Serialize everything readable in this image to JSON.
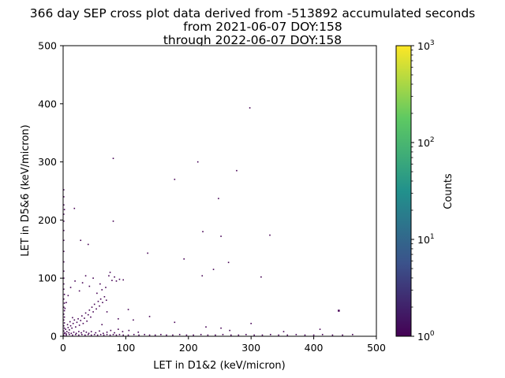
{
  "chart_data": {
    "type": "heatmap",
    "title_lines": [
      "366 day SEP cross plot data derived from -513892 accumulated seconds",
      "from 2021-06-07 DOY:158",
      "through 2022-06-07 DOY:158"
    ],
    "xlabel": "LET in D1&2 (keV/micron)",
    "ylabel": "LET in D5&6 (keV/micron)",
    "xlim": [
      0,
      500
    ],
    "ylim": [
      0,
      500
    ],
    "xticks": [
      0,
      100,
      200,
      300,
      400,
      500
    ],
    "yticks": [
      0,
      100,
      200,
      300,
      400,
      500
    ],
    "colorbar": {
      "label": "Counts",
      "scale": "log",
      "range": [
        1,
        1000
      ],
      "ticks": [
        {
          "value": 1,
          "base": "10",
          "exponent": "0"
        },
        {
          "value": 10,
          "base": "10",
          "exponent": "1"
        },
        {
          "value": 100,
          "base": "10",
          "exponent": "2"
        },
        {
          "value": 1000,
          "base": "10",
          "exponent": "3"
        }
      ],
      "colormap": "viridis",
      "colors": [
        "#440154",
        "#3b528b",
        "#21918c",
        "#5ec962",
        "#fde725"
      ]
    },
    "background_color": "#ffffff",
    "points": [
      {
        "x": 1,
        "y": 2,
        "count": 1
      },
      {
        "x": 2,
        "y": 5,
        "count": 1
      },
      {
        "x": 1,
        "y": 9,
        "count": 1
      },
      {
        "x": 2,
        "y": 14,
        "count": 1
      },
      {
        "x": 1,
        "y": 18,
        "count": 1
      },
      {
        "x": 2,
        "y": 23,
        "count": 1
      },
      {
        "x": 1,
        "y": 28,
        "count": 1
      },
      {
        "x": 2,
        "y": 33,
        "count": 1
      },
      {
        "x": 1,
        "y": 38,
        "count": 1
      },
      {
        "x": 2,
        "y": 44,
        "count": 1
      },
      {
        "x": 1,
        "y": 50,
        "count": 1
      },
      {
        "x": 2,
        "y": 57,
        "count": 1
      },
      {
        "x": 1,
        "y": 64,
        "count": 1
      },
      {
        "x": 2,
        "y": 72,
        "count": 1
      },
      {
        "x": 1,
        "y": 81,
        "count": 1
      },
      {
        "x": 1,
        "y": 90,
        "count": 1
      },
      {
        "x": 1,
        "y": 100,
        "count": 1
      },
      {
        "x": 1,
        "y": 112,
        "count": 1
      },
      {
        "x": 1,
        "y": 128,
        "count": 1
      },
      {
        "x": 1,
        "y": 146,
        "count": 1
      },
      {
        "x": 1,
        "y": 165,
        "count": 1
      },
      {
        "x": 1,
        "y": 182,
        "count": 1
      },
      {
        "x": 1,
        "y": 198,
        "count": 1
      },
      {
        "x": 1,
        "y": 210,
        "count": 1
      },
      {
        "x": 2,
        "y": 218,
        "count": 1
      },
      {
        "x": 1,
        "y": 226,
        "count": 1
      },
      {
        "x": 1,
        "y": 240,
        "count": 1
      },
      {
        "x": 1,
        "y": 252,
        "count": 1
      },
      {
        "x": 5,
        "y": 2,
        "count": 1
      },
      {
        "x": 10,
        "y": 3,
        "count": 1
      },
      {
        "x": 15,
        "y": 2,
        "count": 1
      },
      {
        "x": 20,
        "y": 3,
        "count": 1
      },
      {
        "x": 25,
        "y": 2,
        "count": 1
      },
      {
        "x": 30,
        "y": 3,
        "count": 1
      },
      {
        "x": 35,
        "y": 2,
        "count": 1
      },
      {
        "x": 40,
        "y": 3,
        "count": 1
      },
      {
        "x": 45,
        "y": 2,
        "count": 1
      },
      {
        "x": 50,
        "y": 3,
        "count": 1
      },
      {
        "x": 55,
        "y": 2,
        "count": 1
      },
      {
        "x": 60,
        "y": 3,
        "count": 1
      },
      {
        "x": 65,
        "y": 2,
        "count": 1
      },
      {
        "x": 70,
        "y": 3,
        "count": 1
      },
      {
        "x": 75,
        "y": 2,
        "count": 1
      },
      {
        "x": 80,
        "y": 3,
        "count": 1
      },
      {
        "x": 85,
        "y": 2,
        "count": 1
      },
      {
        "x": 90,
        "y": 3,
        "count": 1
      },
      {
        "x": 96,
        "y": 2,
        "count": 1
      },
      {
        "x": 104,
        "y": 2,
        "count": 1
      },
      {
        "x": 113,
        "y": 3,
        "count": 1
      },
      {
        "x": 121,
        "y": 2,
        "count": 1
      },
      {
        "x": 130,
        "y": 3,
        "count": 1
      },
      {
        "x": 138,
        "y": 2,
        "count": 1
      },
      {
        "x": 147,
        "y": 2,
        "count": 1
      },
      {
        "x": 156,
        "y": 3,
        "count": 1
      },
      {
        "x": 165,
        "y": 2,
        "count": 1
      },
      {
        "x": 175,
        "y": 2,
        "count": 1
      },
      {
        "x": 186,
        "y": 3,
        "count": 1
      },
      {
        "x": 197,
        "y": 2,
        "count": 1
      },
      {
        "x": 208,
        "y": 2,
        "count": 1
      },
      {
        "x": 220,
        "y": 3,
        "count": 1
      },
      {
        "x": 231,
        "y": 2,
        "count": 1
      },
      {
        "x": 243,
        "y": 2,
        "count": 1
      },
      {
        "x": 255,
        "y": 3,
        "count": 1
      },
      {
        "x": 268,
        "y": 2,
        "count": 1
      },
      {
        "x": 280,
        "y": 2,
        "count": 1
      },
      {
        "x": 292,
        "y": 3,
        "count": 1
      },
      {
        "x": 305,
        "y": 2,
        "count": 1
      },
      {
        "x": 318,
        "y": 2,
        "count": 1
      },
      {
        "x": 331,
        "y": 3,
        "count": 1
      },
      {
        "x": 344,
        "y": 2,
        "count": 1
      },
      {
        "x": 358,
        "y": 2,
        "count": 1
      },
      {
        "x": 372,
        "y": 3,
        "count": 1
      },
      {
        "x": 386,
        "y": 2,
        "count": 1
      },
      {
        "x": 400,
        "y": 2,
        "count": 1
      },
      {
        "x": 414,
        "y": 3,
        "count": 1
      },
      {
        "x": 430,
        "y": 2,
        "count": 1
      },
      {
        "x": 446,
        "y": 2,
        "count": 1
      },
      {
        "x": 462,
        "y": 3,
        "count": 1
      },
      {
        "x": 3,
        "y": 6,
        "count": 1
      },
      {
        "x": 4,
        "y": 12,
        "count": 1
      },
      {
        "x": 6,
        "y": 8,
        "count": 1
      },
      {
        "x": 8,
        "y": 15,
        "count": 1
      },
      {
        "x": 7,
        "y": 20,
        "count": 1
      },
      {
        "x": 10,
        "y": 11,
        "count": 1
      },
      {
        "x": 12,
        "y": 18,
        "count": 1
      },
      {
        "x": 11,
        "y": 25,
        "count": 1
      },
      {
        "x": 14,
        "y": 14,
        "count": 1
      },
      {
        "x": 16,
        "y": 22,
        "count": 1
      },
      {
        "x": 18,
        "y": 28,
        "count": 1
      },
      {
        "x": 15,
        "y": 32,
        "count": 1
      },
      {
        "x": 20,
        "y": 16,
        "count": 1
      },
      {
        "x": 22,
        "y": 24,
        "count": 1
      },
      {
        "x": 24,
        "y": 30,
        "count": 1
      },
      {
        "x": 26,
        "y": 19,
        "count": 1
      },
      {
        "x": 28,
        "y": 27,
        "count": 1
      },
      {
        "x": 30,
        "y": 35,
        "count": 1
      },
      {
        "x": 32,
        "y": 22,
        "count": 1
      },
      {
        "x": 34,
        "y": 31,
        "count": 1
      },
      {
        "x": 36,
        "y": 40,
        "count": 1
      },
      {
        "x": 38,
        "y": 26,
        "count": 1
      },
      {
        "x": 40,
        "y": 37,
        "count": 1
      },
      {
        "x": 42,
        "y": 45,
        "count": 1
      },
      {
        "x": 44,
        "y": 33,
        "count": 1
      },
      {
        "x": 46,
        "y": 50,
        "count": 1
      },
      {
        "x": 48,
        "y": 42,
        "count": 1
      },
      {
        "x": 50,
        "y": 55,
        "count": 1
      },
      {
        "x": 53,
        "y": 47,
        "count": 1
      },
      {
        "x": 56,
        "y": 60,
        "count": 1
      },
      {
        "x": 58,
        "y": 52,
        "count": 1
      },
      {
        "x": 60,
        "y": 64,
        "count": 1
      },
      {
        "x": 63,
        "y": 58,
        "count": 1
      },
      {
        "x": 66,
        "y": 68,
        "count": 1
      },
      {
        "x": 69,
        "y": 62,
        "count": 1
      },
      {
        "x": 5,
        "y": 4,
        "count": 1
      },
      {
        "x": 9,
        "y": 6,
        "count": 1
      },
      {
        "x": 13,
        "y": 5,
        "count": 1
      },
      {
        "x": 17,
        "y": 7,
        "count": 1
      },
      {
        "x": 21,
        "y": 5,
        "count": 1
      },
      {
        "x": 25,
        "y": 8,
        "count": 1
      },
      {
        "x": 29,
        "y": 6,
        "count": 1
      },
      {
        "x": 33,
        "y": 9,
        "count": 1
      },
      {
        "x": 37,
        "y": 7,
        "count": 1
      },
      {
        "x": 41,
        "y": 5,
        "count": 1
      },
      {
        "x": 45,
        "y": 8,
        "count": 1
      },
      {
        "x": 52,
        "y": 6,
        "count": 1
      },
      {
        "x": 58,
        "y": 9,
        "count": 1
      },
      {
        "x": 64,
        "y": 5,
        "count": 1
      },
      {
        "x": 70,
        "y": 7,
        "count": 1
      },
      {
        "x": 76,
        "y": 10,
        "count": 1
      },
      {
        "x": 82,
        "y": 6,
        "count": 1
      },
      {
        "x": 88,
        "y": 12,
        "count": 1
      },
      {
        "x": 95,
        "y": 8,
        "count": 1
      },
      {
        "x": 105,
        "y": 10,
        "count": 1
      },
      {
        "x": 120,
        "y": 7,
        "count": 1
      },
      {
        "x": 3,
        "y": 48,
        "count": 1
      },
      {
        "x": 5,
        "y": 58,
        "count": 1
      },
      {
        "x": 8,
        "y": 70,
        "count": 1
      },
      {
        "x": 12,
        "y": 84,
        "count": 1
      },
      {
        "x": 19,
        "y": 95,
        "count": 1
      },
      {
        "x": 26,
        "y": 78,
        "count": 1
      },
      {
        "x": 31,
        "y": 92,
        "count": 1
      },
      {
        "x": 36,
        "y": 104,
        "count": 1
      },
      {
        "x": 42,
        "y": 86,
        "count": 1
      },
      {
        "x": 48,
        "y": 100,
        "count": 1
      },
      {
        "x": 54,
        "y": 74,
        "count": 1
      },
      {
        "x": 59,
        "y": 90,
        "count": 1
      },
      {
        "x": 62,
        "y": 80,
        "count": 1
      },
      {
        "x": 68,
        "y": 84,
        "count": 1
      },
      {
        "x": 73,
        "y": 104,
        "count": 1
      },
      {
        "x": 75,
        "y": 110,
        "count": 1
      },
      {
        "x": 78,
        "y": 96,
        "count": 1
      },
      {
        "x": 82,
        "y": 102,
        "count": 1
      },
      {
        "x": 85,
        "y": 95,
        "count": 1
      },
      {
        "x": 90,
        "y": 98,
        "count": 1
      },
      {
        "x": 96,
        "y": 97,
        "count": 1
      },
      {
        "x": 28,
        "y": 165,
        "count": 1
      },
      {
        "x": 40,
        "y": 158,
        "count": 1
      },
      {
        "x": 18,
        "y": 220,
        "count": 1
      },
      {
        "x": 80,
        "y": 198,
        "count": 1
      },
      {
        "x": 80,
        "y": 306,
        "count": 1
      },
      {
        "x": 135,
        "y": 143,
        "count": 1
      },
      {
        "x": 178,
        "y": 270,
        "count": 1
      },
      {
        "x": 193,
        "y": 133,
        "count": 1
      },
      {
        "x": 215,
        "y": 300,
        "count": 1
      },
      {
        "x": 223,
        "y": 180,
        "count": 1
      },
      {
        "x": 222,
        "y": 104,
        "count": 1
      },
      {
        "x": 240,
        "y": 115,
        "count": 1
      },
      {
        "x": 248,
        "y": 237,
        "count": 1
      },
      {
        "x": 252,
        "y": 172,
        "count": 1
      },
      {
        "x": 264,
        "y": 127,
        "count": 1
      },
      {
        "x": 277,
        "y": 285,
        "count": 1
      },
      {
        "x": 298,
        "y": 393,
        "count": 1
      },
      {
        "x": 316,
        "y": 102,
        "count": 1
      },
      {
        "x": 330,
        "y": 174,
        "count": 1
      },
      {
        "x": 440,
        "y": 44,
        "count": 2
      },
      {
        "x": 138,
        "y": 34,
        "count": 1
      },
      {
        "x": 178,
        "y": 24,
        "count": 1
      },
      {
        "x": 252,
        "y": 14,
        "count": 1
      },
      {
        "x": 300,
        "y": 22,
        "count": 1
      },
      {
        "x": 352,
        "y": 8,
        "count": 1
      },
      {
        "x": 410,
        "y": 12,
        "count": 1
      },
      {
        "x": 228,
        "y": 16,
        "count": 1
      },
      {
        "x": 266,
        "y": 10,
        "count": 1
      },
      {
        "x": 104,
        "y": 46,
        "count": 1
      },
      {
        "x": 70,
        "y": 42,
        "count": 1
      },
      {
        "x": 88,
        "y": 30,
        "count": 1
      },
      {
        "x": 62,
        "y": 20,
        "count": 1
      },
      {
        "x": 112,
        "y": 28,
        "count": 1
      }
    ]
  }
}
